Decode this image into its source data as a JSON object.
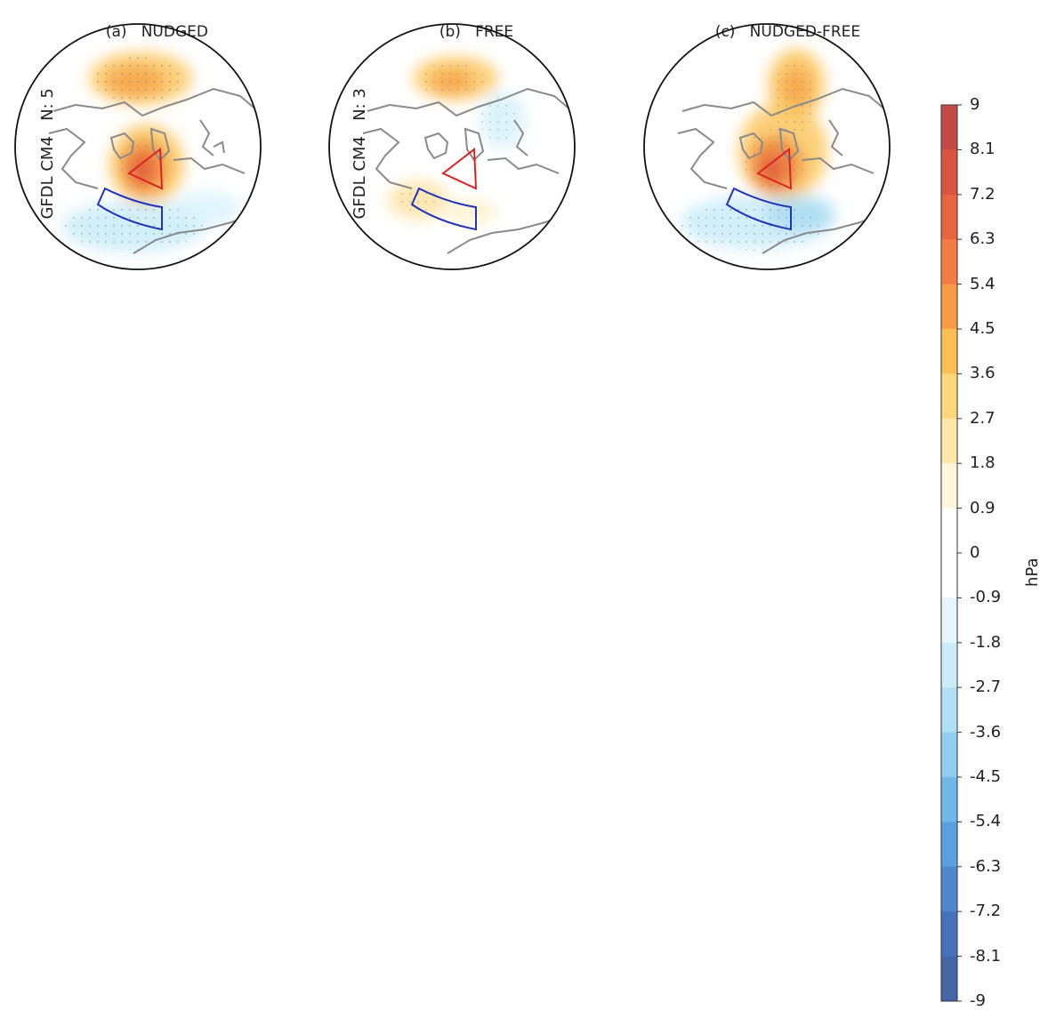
{
  "panels": [
    {
      "letter": "(a)",
      "title": "NUDGED"
    },
    {
      "letter": "(b)",
      "title": "FREE"
    },
    {
      "letter": "(c)",
      "title": "NUDGED-FREE"
    }
  ],
  "row_labels": [
    {
      "model": "GFDL CM4",
      "n": "N: 5"
    },
    {
      "model": "GFDL CM4",
      "n": "N: 3"
    }
  ],
  "colorbar": {
    "unit": "hPa",
    "ticks": [
      "9",
      "8.1",
      "7.2",
      "6.3",
      "5.4",
      "4.5",
      "3.6",
      "2.7",
      "1.8",
      "0.9",
      "0",
      "-0.9",
      "-1.8",
      "-2.7",
      "-3.6",
      "-4.5",
      "-5.4",
      "-6.3",
      "-7.2",
      "-8.1",
      "-9"
    ],
    "colors": [
      "#c44a45",
      "#d95443",
      "#e8633f",
      "#f47c43",
      "#f89b47",
      "#fbbf56",
      "#fdd77b",
      "#fee9a8",
      "#fff6dc",
      "#ffffff",
      "#ffffff",
      "#e6f7fb",
      "#ccedf7",
      "#b0e0f3",
      "#90cdf0",
      "#72b7ea",
      "#5b9fdf",
      "#4f88cf",
      "#4672bb",
      "#4566a6"
    ]
  },
  "regions": {
    "box_a_color": "#dd2222",
    "box_b_color": "#2233bb"
  }
}
